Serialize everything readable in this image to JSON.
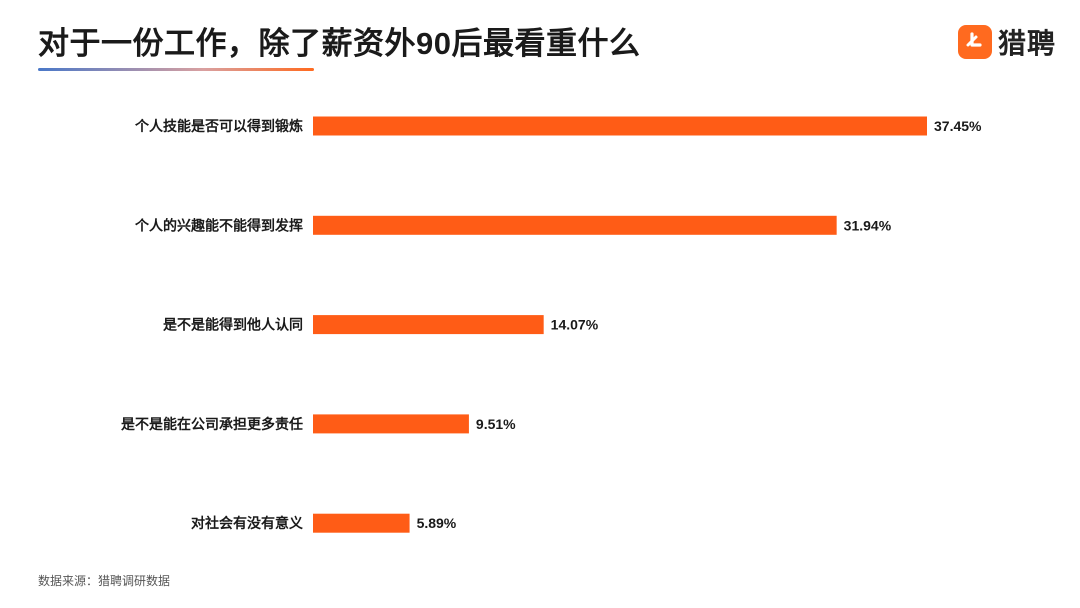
{
  "header": {
    "title": "对于一份工作，除了薪资外90后最看重什么",
    "logo_text": "猎聘"
  },
  "footer": {
    "source": "数据来源：猎聘调研数据"
  },
  "colors": {
    "bar": "#ff5c16",
    "accent": "#ff6a1f",
    "text": "#1a1a1a"
  },
  "chart_data": {
    "type": "bar",
    "orientation": "horizontal",
    "categories": [
      "个人技能是否可以得到锻炼",
      "个人的兴趣能不能得到发挥",
      "是不是能得到他人认同",
      "是不是能在公司承担更多责任",
      "对社会有没有意义"
    ],
    "values": [
      37.45,
      31.94,
      14.07,
      9.51,
      5.89
    ],
    "value_labels": [
      "37.45%",
      "31.94%",
      "14.07%",
      "9.51%",
      "5.89%"
    ],
    "unit": "%",
    "title": "",
    "xlabel": "",
    "ylabel": "",
    "xlim": [
      0,
      37.45
    ],
    "grid": false,
    "legend": "none"
  }
}
